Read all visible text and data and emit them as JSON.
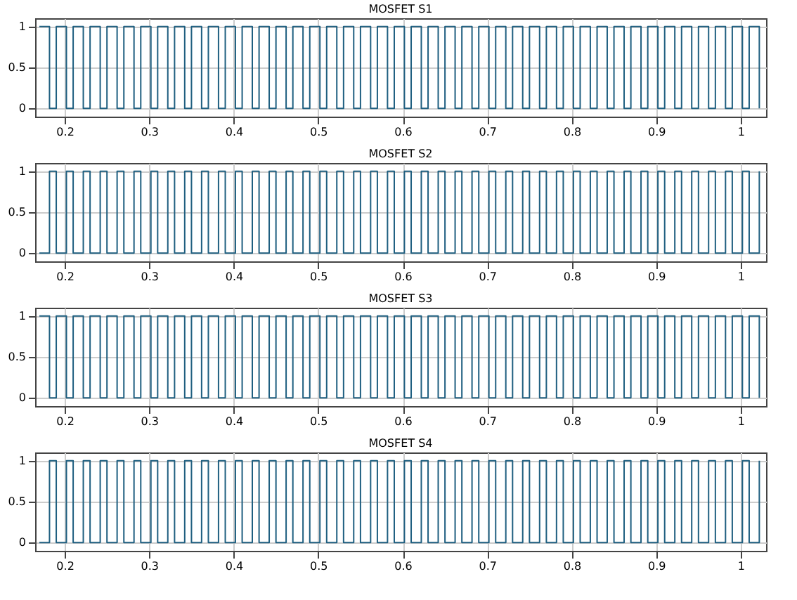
{
  "chart_data": [
    {
      "type": "step",
      "title": "MOSFET S1",
      "color": "#1f5f80",
      "grid": true,
      "xlim": [
        0.165,
        1.03
      ],
      "xticks": [
        0.2,
        0.3,
        0.4,
        0.5,
        0.6,
        0.7,
        0.8,
        0.9,
        1
      ],
      "ylim": [
        -0.1,
        1.1
      ],
      "yticks": [
        0,
        0.5,
        1
      ],
      "x": [
        0.17,
        0.182,
        0.19,
        0.202,
        0.21,
        0.222,
        0.23,
        0.242,
        0.25,
        0.262,
        0.27,
        0.282,
        0.29,
        0.302,
        0.31,
        0.322,
        0.33,
        0.342,
        0.35,
        0.362,
        0.37,
        0.382,
        0.39,
        0.402,
        0.41,
        0.422,
        0.43,
        0.442,
        0.45,
        0.462,
        0.47,
        0.482,
        0.49,
        0.502,
        0.51,
        0.522,
        0.53,
        0.542,
        0.55,
        0.562,
        0.57,
        0.582,
        0.59,
        0.602,
        0.61,
        0.622,
        0.63,
        0.642,
        0.65,
        0.662,
        0.67,
        0.682,
        0.69,
        0.702,
        0.71,
        0.722,
        0.73,
        0.742,
        0.75,
        0.762,
        0.77,
        0.782,
        0.79,
        0.802,
        0.81,
        0.822,
        0.83,
        0.842,
        0.85,
        0.862,
        0.87,
        0.882,
        0.89,
        0.902,
        0.91,
        0.922,
        0.93,
        0.942,
        0.95,
        0.962,
        0.97,
        0.982,
        0.99,
        1.002,
        1.01,
        1.022
      ],
      "values": [
        1,
        0,
        1,
        0,
        1,
        0,
        1,
        0,
        1,
        0,
        1,
        0,
        1,
        0,
        1,
        0,
        1,
        0,
        1,
        0,
        1,
        0,
        1,
        0,
        1,
        0,
        1,
        0,
        1,
        0,
        1,
        0,
        1,
        0,
        1,
        0,
        1,
        0,
        1,
        0,
        1,
        0,
        1,
        0,
        1,
        0,
        1,
        0,
        1,
        0,
        1,
        0,
        1,
        0,
        1,
        0,
        1,
        0,
        1,
        0,
        1,
        0,
        1,
        0,
        1,
        0,
        1,
        0,
        1,
        0,
        1,
        0,
        1,
        0,
        1,
        0,
        1,
        0,
        1,
        0,
        1,
        0,
        1,
        0,
        1,
        0
      ]
    },
    {
      "type": "step",
      "title": "MOSFET S2",
      "color": "#1f5f80",
      "grid": true,
      "xlim": [
        0.165,
        1.03
      ],
      "xticks": [
        0.2,
        0.3,
        0.4,
        0.5,
        0.6,
        0.7,
        0.8,
        0.9,
        1
      ],
      "ylim": [
        -0.1,
        1.1
      ],
      "yticks": [
        0,
        0.5,
        1
      ],
      "x": [
        0.17,
        0.182,
        0.19,
        0.202,
        0.21,
        0.222,
        0.23,
        0.242,
        0.25,
        0.262,
        0.27,
        0.282,
        0.29,
        0.302,
        0.31,
        0.322,
        0.33,
        0.342,
        0.35,
        0.362,
        0.37,
        0.382,
        0.39,
        0.402,
        0.41,
        0.422,
        0.43,
        0.442,
        0.45,
        0.462,
        0.47,
        0.482,
        0.49,
        0.502,
        0.51,
        0.522,
        0.53,
        0.542,
        0.55,
        0.562,
        0.57,
        0.582,
        0.59,
        0.602,
        0.61,
        0.622,
        0.63,
        0.642,
        0.65,
        0.662,
        0.67,
        0.682,
        0.69,
        0.702,
        0.71,
        0.722,
        0.73,
        0.742,
        0.75,
        0.762,
        0.77,
        0.782,
        0.79,
        0.802,
        0.81,
        0.822,
        0.83,
        0.842,
        0.85,
        0.862,
        0.87,
        0.882,
        0.89,
        0.902,
        0.91,
        0.922,
        0.93,
        0.942,
        0.95,
        0.962,
        0.97,
        0.982,
        0.99,
        1.002,
        1.01,
        1.022
      ],
      "values": [
        0,
        1,
        0,
        1,
        0,
        1,
        0,
        1,
        0,
        1,
        0,
        1,
        0,
        1,
        0,
        1,
        0,
        1,
        0,
        1,
        0,
        1,
        0,
        1,
        0,
        1,
        0,
        1,
        0,
        1,
        0,
        1,
        0,
        1,
        0,
        1,
        0,
        1,
        0,
        1,
        0,
        1,
        0,
        1,
        0,
        1,
        0,
        1,
        0,
        1,
        0,
        1,
        0,
        1,
        0,
        1,
        0,
        1,
        0,
        1,
        0,
        1,
        0,
        1,
        0,
        1,
        0,
        1,
        0,
        1,
        0,
        1,
        0,
        1,
        0,
        1,
        0,
        1,
        0,
        1,
        0,
        1,
        0,
        1,
        0,
        1
      ]
    },
    {
      "type": "step",
      "title": "MOSFET S3",
      "color": "#1f5f80",
      "grid": true,
      "xlim": [
        0.165,
        1.03
      ],
      "xticks": [
        0.2,
        0.3,
        0.4,
        0.5,
        0.6,
        0.7,
        0.8,
        0.9,
        1
      ],
      "ylim": [
        -0.1,
        1.1
      ],
      "yticks": [
        0,
        0.5,
        1
      ],
      "x": [
        0.17,
        0.182,
        0.19,
        0.202,
        0.21,
        0.222,
        0.23,
        0.242,
        0.25,
        0.262,
        0.27,
        0.282,
        0.29,
        0.302,
        0.31,
        0.322,
        0.33,
        0.342,
        0.35,
        0.362,
        0.37,
        0.382,
        0.39,
        0.402,
        0.41,
        0.422,
        0.43,
        0.442,
        0.45,
        0.462,
        0.47,
        0.482,
        0.49,
        0.502,
        0.51,
        0.522,
        0.53,
        0.542,
        0.55,
        0.562,
        0.57,
        0.582,
        0.59,
        0.602,
        0.61,
        0.622,
        0.63,
        0.642,
        0.65,
        0.662,
        0.67,
        0.682,
        0.69,
        0.702,
        0.71,
        0.722,
        0.73,
        0.742,
        0.75,
        0.762,
        0.77,
        0.782,
        0.79,
        0.802,
        0.81,
        0.822,
        0.83,
        0.842,
        0.85,
        0.862,
        0.87,
        0.882,
        0.89,
        0.902,
        0.91,
        0.922,
        0.93,
        0.942,
        0.95,
        0.962,
        0.97,
        0.982,
        0.99,
        1.002,
        1.01,
        1.022
      ],
      "values": [
        1,
        0,
        1,
        0,
        1,
        0,
        1,
        0,
        1,
        0,
        1,
        0,
        1,
        0,
        1,
        0,
        1,
        0,
        1,
        0,
        1,
        0,
        1,
        0,
        1,
        0,
        1,
        0,
        1,
        0,
        1,
        0,
        1,
        0,
        1,
        0,
        1,
        0,
        1,
        0,
        1,
        0,
        1,
        0,
        1,
        0,
        1,
        0,
        1,
        0,
        1,
        0,
        1,
        0,
        1,
        0,
        1,
        0,
        1,
        0,
        1,
        0,
        1,
        0,
        1,
        0,
        1,
        0,
        1,
        0,
        1,
        0,
        1,
        0,
        1,
        0,
        1,
        0,
        1,
        0,
        1,
        0,
        1,
        0,
        1,
        0
      ]
    },
    {
      "type": "step",
      "title": "MOSFET S4",
      "color": "#1f5f80",
      "grid": true,
      "xlim": [
        0.165,
        1.03
      ],
      "xticks": [
        0.2,
        0.3,
        0.4,
        0.5,
        0.6,
        0.7,
        0.8,
        0.9,
        1
      ],
      "ylim": [
        -0.1,
        1.1
      ],
      "yticks": [
        0,
        0.5,
        1
      ],
      "x": [
        0.17,
        0.182,
        0.19,
        0.202,
        0.21,
        0.222,
        0.23,
        0.242,
        0.25,
        0.262,
        0.27,
        0.282,
        0.29,
        0.302,
        0.31,
        0.322,
        0.33,
        0.342,
        0.35,
        0.362,
        0.37,
        0.382,
        0.39,
        0.402,
        0.41,
        0.422,
        0.43,
        0.442,
        0.45,
        0.462,
        0.47,
        0.482,
        0.49,
        0.502,
        0.51,
        0.522,
        0.53,
        0.542,
        0.55,
        0.562,
        0.57,
        0.582,
        0.59,
        0.602,
        0.61,
        0.622,
        0.63,
        0.642,
        0.65,
        0.662,
        0.67,
        0.682,
        0.69,
        0.702,
        0.71,
        0.722,
        0.73,
        0.742,
        0.75,
        0.762,
        0.77,
        0.782,
        0.79,
        0.802,
        0.81,
        0.822,
        0.83,
        0.842,
        0.85,
        0.862,
        0.87,
        0.882,
        0.89,
        0.902,
        0.91,
        0.922,
        0.93,
        0.942,
        0.95,
        0.962,
        0.97,
        0.982,
        0.99,
        1.002,
        1.01,
        1.022
      ],
      "values": [
        0,
        1,
        0,
        1,
        0,
        1,
        0,
        1,
        0,
        1,
        0,
        1,
        0,
        1,
        0,
        1,
        0,
        1,
        0,
        1,
        0,
        1,
        0,
        1,
        0,
        1,
        0,
        1,
        0,
        1,
        0,
        1,
        0,
        1,
        0,
        1,
        0,
        1,
        0,
        1,
        0,
        1,
        0,
        1,
        0,
        1,
        0,
        1,
        0,
        1,
        0,
        1,
        0,
        1,
        0,
        1,
        0,
        1,
        0,
        1,
        0,
        1,
        0,
        1,
        0,
        1,
        0,
        1,
        0,
        1,
        0,
        1,
        0,
        1,
        0,
        1,
        0,
        1,
        0,
        1,
        0,
        1,
        0,
        1,
        0,
        1
      ]
    }
  ]
}
